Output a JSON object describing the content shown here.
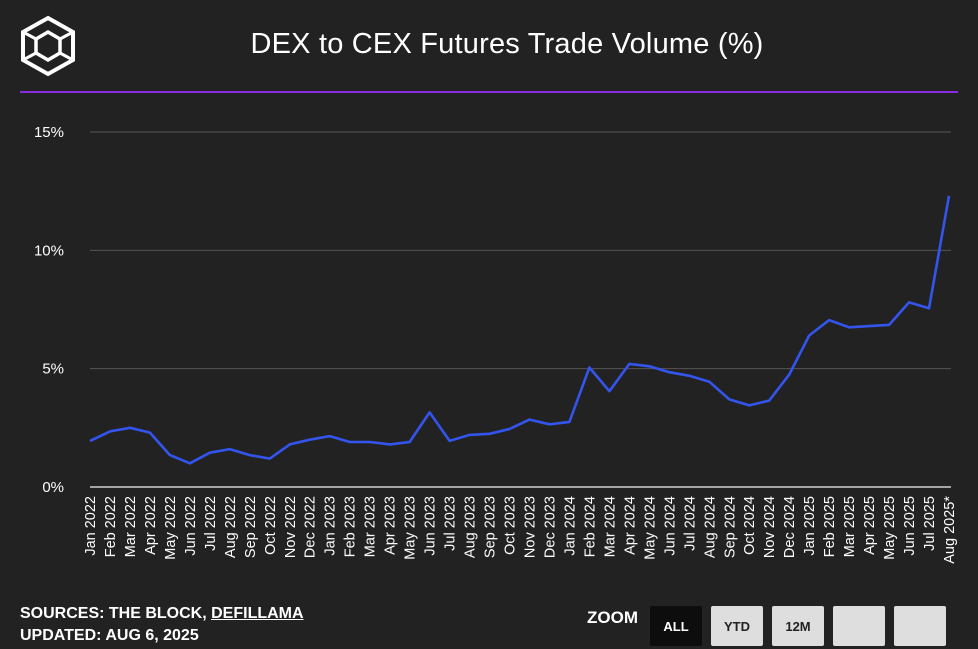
{
  "header": {
    "title": "DEX to CEX Futures Trade Volume (%)"
  },
  "footer": {
    "sources_prefix": "SOURCES: THE BLOCK, ",
    "sources_link": "DEFILLAMA",
    "updated": "UPDATED: AUG 6, 2025"
  },
  "zoom": {
    "label": "ZOOM",
    "buttons": [
      "ALL",
      "YTD",
      "12M",
      "",
      ""
    ],
    "active": "ALL"
  },
  "colors": {
    "background": "#222222",
    "line": "#3355ee",
    "accent_divider": "#8a2be2",
    "grid": "#555555"
  },
  "chart_data": {
    "type": "line",
    "title": "DEX to CEX Futures Trade Volume (%)",
    "ylim": [
      0,
      15
    ],
    "yticks": [
      "0%",
      "5%",
      "10%",
      "15%"
    ],
    "grid": true,
    "x": [
      "Jan 2022",
      "Feb 2022",
      "Mar 2022",
      "Apr 2022",
      "May 2022",
      "Jun 2022",
      "Jul 2022",
      "Aug 2022",
      "Sep 2022",
      "Oct 2022",
      "Nov 2022",
      "Dec 2022",
      "Jan 2023",
      "Feb 2023",
      "Mar 2023",
      "Apr 2023",
      "May 2023",
      "Jun 2023",
      "Jul 2023",
      "Aug 2023",
      "Sep 2023",
      "Oct 2023",
      "Nov 2023",
      "Dec 2023",
      "Jan 2024",
      "Feb 2024",
      "Mar 2024",
      "Apr 2024",
      "May 2024",
      "Jun 2024",
      "Jul 2024",
      "Aug 2024",
      "Sep 2024",
      "Oct 2024",
      "Nov 2024",
      "Dec 2024",
      "Jan 2025",
      "Feb 2025",
      "Mar 2025",
      "Apr 2025",
      "May 2025",
      "Jun 2025",
      "Jul 2025",
      "Aug 2025*"
    ],
    "series": [
      {
        "values": [
          1.95,
          2.35,
          2.5,
          2.3,
          1.35,
          1.0,
          1.45,
          1.6,
          1.35,
          1.2,
          1.8,
          2.0,
          2.15,
          1.9,
          1.9,
          1.8,
          1.9,
          3.15,
          1.95,
          2.2,
          2.25,
          2.45,
          2.85,
          2.65,
          2.75,
          5.05,
          4.05,
          5.2,
          5.1,
          4.85,
          4.7,
          4.45,
          3.7,
          3.45,
          3.65,
          4.75,
          6.4,
          7.05,
          6.75,
          6.8,
          6.85,
          7.8,
          7.55,
          12.3
        ]
      }
    ]
  }
}
